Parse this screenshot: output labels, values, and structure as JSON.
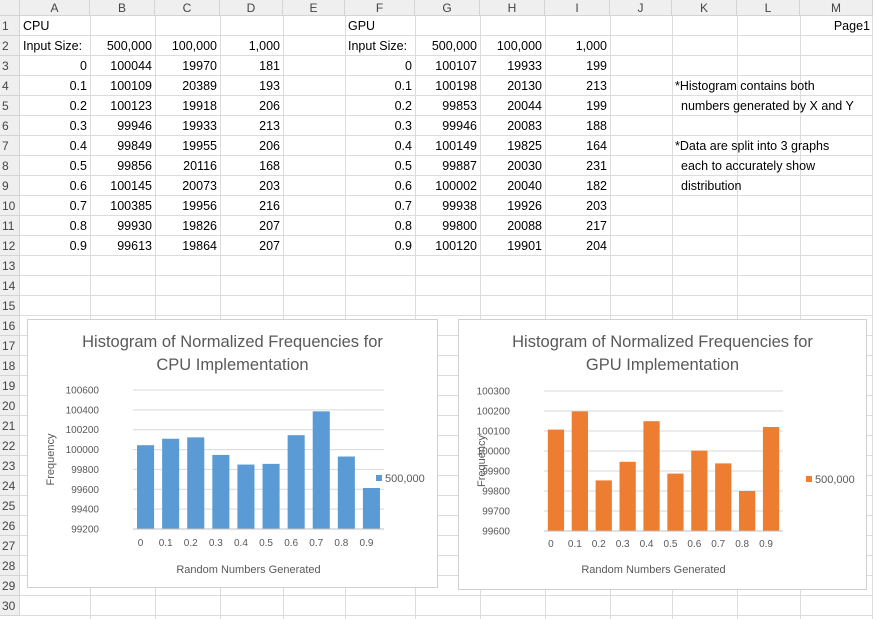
{
  "sheet": {
    "columns": [
      "A",
      "B",
      "C",
      "D",
      "E",
      "F",
      "G",
      "H",
      "I",
      "J",
      "K",
      "L",
      "M"
    ],
    "rows": [
      "1",
      "2",
      "3",
      "4",
      "5",
      "6",
      "7",
      "8",
      "9",
      "10",
      "11",
      "12",
      "13",
      "14",
      "15",
      "16",
      "17",
      "18",
      "19",
      "20",
      "21",
      "22",
      "23",
      "24",
      "25",
      "26",
      "27",
      "28",
      "29",
      "30"
    ],
    "page_label": "Page1",
    "cpu": {
      "title": "CPU",
      "input_label": "Input Size:",
      "sizes": [
        "500,000",
        "100,000",
        "1,000"
      ],
      "table": [
        [
          "0",
          "100044",
          "19970",
          "181"
        ],
        [
          "0.1",
          "100109",
          "20389",
          "193"
        ],
        [
          "0.2",
          "100123",
          "19918",
          "206"
        ],
        [
          "0.3",
          "99946",
          "19933",
          "213"
        ],
        [
          "0.4",
          "99849",
          "19955",
          "206"
        ],
        [
          "0.5",
          "99856",
          "20116",
          "168"
        ],
        [
          "0.6",
          "100145",
          "20073",
          "203"
        ],
        [
          "0.7",
          "100385",
          "19956",
          "216"
        ],
        [
          "0.8",
          "99930",
          "19826",
          "207"
        ],
        [
          "0.9",
          "99613",
          "19864",
          "207"
        ]
      ]
    },
    "gpu": {
      "title": "GPU",
      "input_label": "Input Size:",
      "sizes": [
        "500,000",
        "100,000",
        "1,000"
      ],
      "table": [
        [
          "0",
          "100107",
          "19933",
          "199"
        ],
        [
          "0.1",
          "100198",
          "20130",
          "213"
        ],
        [
          "0.2",
          "99853",
          "20044",
          "199"
        ],
        [
          "0.3",
          "99946",
          "20083",
          "188"
        ],
        [
          "0.4",
          "100149",
          "19825",
          "164"
        ],
        [
          "0.5",
          "99887",
          "20030",
          "231"
        ],
        [
          "0.6",
          "100002",
          "20040",
          "182"
        ],
        [
          "0.7",
          "99938",
          "19926",
          "203"
        ],
        [
          "0.8",
          "99800",
          "20088",
          "217"
        ],
        [
          "0.9",
          "100120",
          "19901",
          "204"
        ]
      ]
    },
    "notes": [
      "*Histogram contains both",
      "numbers generated by X and Y",
      "*Data are split into 3 graphs",
      "each to accurately show",
      "distribution"
    ]
  },
  "chart_data": [
    {
      "type": "bar",
      "title_lines": [
        "Histogram of Normalized Frequencies for",
        "CPU Implementation"
      ],
      "xlabel": "Random Numbers Generated",
      "ylabel": "Frequency",
      "categories": [
        "0",
        "0.1",
        "0.2",
        "0.3",
        "0.4",
        "0.5",
        "0.6",
        "0.7",
        "0.8",
        "0.9"
      ],
      "series": [
        {
          "name": "500,000",
          "values": [
            100044,
            100109,
            100123,
            99946,
            99849,
            99856,
            100145,
            100385,
            99930,
            99613
          ]
        }
      ],
      "ylim": [
        99200,
        100600
      ],
      "yticks": [
        99200,
        99400,
        99600,
        99800,
        100000,
        100200,
        100400,
        100600
      ],
      "grid": true,
      "legend": "right",
      "color": "#5b9bd5"
    },
    {
      "type": "bar",
      "title_lines": [
        "Histogram of Normalized Frequencies for",
        "GPU Implementation"
      ],
      "xlabel": "Random Numbers Generated",
      "ylabel": "Frequency",
      "categories": [
        "0",
        "0.1",
        "0.2",
        "0.3",
        "0.4",
        "0.5",
        "0.6",
        "0.7",
        "0.8",
        "0.9"
      ],
      "series": [
        {
          "name": "500,000",
          "values": [
            100107,
            100198,
            99853,
            99946,
            100149,
            99887,
            100002,
            99938,
            99800,
            100120
          ]
        }
      ],
      "ylim": [
        99600,
        100300
      ],
      "yticks": [
        99600,
        99700,
        99800,
        99900,
        100000,
        100100,
        100200,
        100300
      ],
      "grid": true,
      "legend": "right",
      "color": "#ed7d31"
    }
  ]
}
